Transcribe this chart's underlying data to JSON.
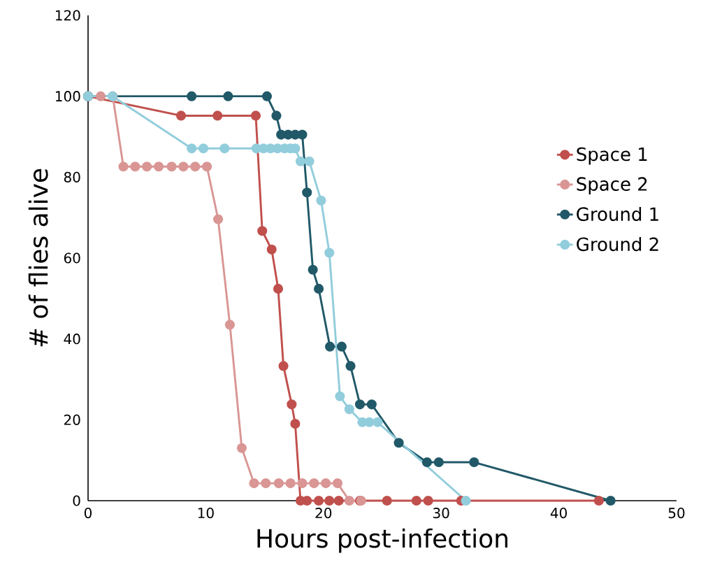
{
  "chart_data": {
    "type": "line",
    "xlabel": "Hours post-infection",
    "ylabel": "# of flies alive",
    "xlim": [
      0,
      50
    ],
    "ylim": [
      0,
      120
    ],
    "xticks": [
      0,
      10,
      20,
      30,
      40,
      50
    ],
    "yticks": [
      0,
      20,
      40,
      60,
      80,
      100,
      120
    ],
    "grid": false,
    "legend": "right",
    "marker": "circle",
    "line_style": "solid",
    "series": [
      {
        "name": "Space 1",
        "color": "#c0504d",
        "x": [
          0,
          7.9,
          11.0,
          14.25,
          14.8,
          15.6,
          16.15,
          16.6,
          17.3,
          17.6,
          18.05,
          18.6,
          19.6,
          20.5,
          21.3,
          23.1,
          25.4,
          27.9,
          28.9,
          31.7,
          43.4
        ],
        "values": [
          100,
          95.2,
          95.2,
          95.2,
          66.7,
          62.1,
          52.4,
          33.3,
          23.8,
          19.0,
          0,
          0,
          0,
          0,
          0,
          0,
          0,
          0,
          0,
          0,
          0
        ]
      },
      {
        "name": "Space 2",
        "color": "#d99694",
        "x": [
          1.07,
          2.1,
          3.0,
          4.0,
          5.0,
          6.0,
          7.1,
          8.1,
          9.1,
          10.1,
          11.05,
          12.05,
          13.06,
          14.1,
          15.1,
          16.2,
          17.2,
          18.2,
          19.2,
          20.2,
          21.2,
          22.2,
          23.2
        ],
        "values": [
          100,
          100,
          82.6,
          82.6,
          82.6,
          82.6,
          82.6,
          82.6,
          82.6,
          82.6,
          69.6,
          43.5,
          13.0,
          4.3,
          4.3,
          4.3,
          4.3,
          4.3,
          4.3,
          4.3,
          4.3,
          0,
          0
        ]
      },
      {
        "name": "Ground 1",
        "color": "#215968",
        "x": [
          0,
          8.8,
          11.9,
          15.2,
          16.0,
          16.4,
          17.0,
          17.6,
          18.2,
          18.6,
          19.1,
          19.6,
          20.55,
          21.55,
          22.3,
          23.1,
          24.1,
          26.4,
          28.8,
          29.8,
          32.8,
          44.4
        ],
        "values": [
          100,
          100,
          100,
          100,
          95.2,
          90.5,
          90.5,
          90.5,
          90.5,
          76.2,
          57.1,
          52.4,
          38.1,
          38.1,
          33.3,
          23.8,
          23.8,
          14.3,
          9.5,
          9.5,
          9.5,
          0
        ]
      },
      {
        "name": "Ground 2",
        "color": "#92cddc",
        "x": [
          0,
          2.08,
          8.8,
          9.8,
          11.6,
          14.3,
          14.9,
          15.5,
          16.1,
          16.7,
          17.2,
          17.6,
          18.05,
          18.8,
          19.8,
          20.5,
          21.4,
          22.2,
          23.3,
          23.9,
          24.6,
          32.1
        ],
        "values": [
          100,
          100,
          87.1,
          87.1,
          87.1,
          87.1,
          87.1,
          87.1,
          87.1,
          87.1,
          87.1,
          87.1,
          83.9,
          83.9,
          74.2,
          61.3,
          25.8,
          22.6,
          19.4,
          19.4,
          19.4,
          0
        ]
      }
    ]
  }
}
